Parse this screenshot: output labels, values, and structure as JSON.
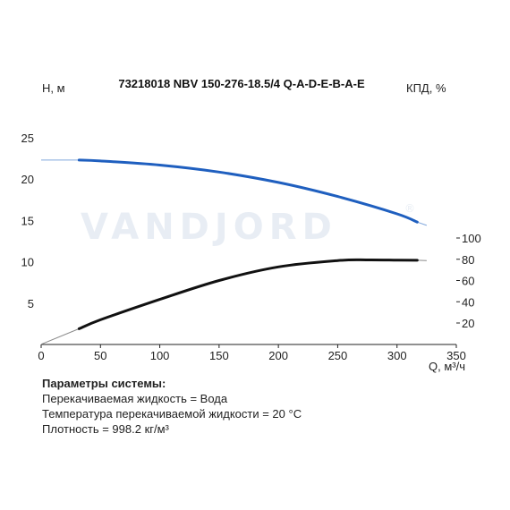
{
  "chart_data": {
    "type": "line",
    "title": "73218018 NBV 150-276-18.5/4 Q-A-D-E-B-A-E",
    "xlabel": "Q, м³/ч",
    "ylabel_left": "H, м",
    "ylabel_right": "КПД, %",
    "xlim": [
      0,
      350
    ],
    "ylim_left": [
      0,
      25
    ],
    "ylim_right_ticks": [
      20,
      40,
      60,
      80,
      100
    ],
    "x_ticks": [
      0,
      50,
      100,
      150,
      200,
      250,
      300,
      350
    ],
    "y_ticks_left": [
      5,
      10,
      15,
      20,
      25
    ],
    "grid": false,
    "watermark": "VANDJORD",
    "watermark_mark": "®",
    "series": [
      {
        "name": "",
        "axis": "left",
        "color": "#1f5fbf",
        "thin_extension": [
          [
            0,
            22.3
          ],
          [
            32,
            22.3
          ]
        ],
        "thin_extension_end": [
          [
            317,
            14.8
          ],
          [
            325,
            14.4
          ]
        ],
        "points": [
          [
            32,
            22.3
          ],
          [
            50,
            22.2
          ],
          [
            100,
            21.7
          ],
          [
            150,
            20.85
          ],
          [
            200,
            19.6
          ],
          [
            250,
            17.9
          ],
          [
            300,
            15.8
          ],
          [
            317,
            14.8
          ]
        ]
      },
      {
        "name": "",
        "axis": "right",
        "color": "#111111",
        "thin_extension": [
          [
            0,
            0
          ],
          [
            32,
            14.6
          ]
        ],
        "thin_extension_end": [
          [
            317,
            79.0
          ],
          [
            325,
            78.7
          ]
        ],
        "points": [
          [
            32,
            14.6
          ],
          [
            50,
            23.0
          ],
          [
            100,
            42.2
          ],
          [
            150,
            60.0
          ],
          [
            200,
            72.8
          ],
          [
            250,
            78.8
          ],
          [
            275,
            79.4
          ],
          [
            300,
            79.1
          ],
          [
            317,
            79.0
          ]
        ]
      }
    ]
  },
  "params": {
    "title": "Параметры системы:",
    "lines": [
      "Перекачиваемая жидкость = Вода",
      "Температура перекачиваемой жидкости = 20 °C",
      "Плотность = 998.2 кг/м³"
    ]
  }
}
